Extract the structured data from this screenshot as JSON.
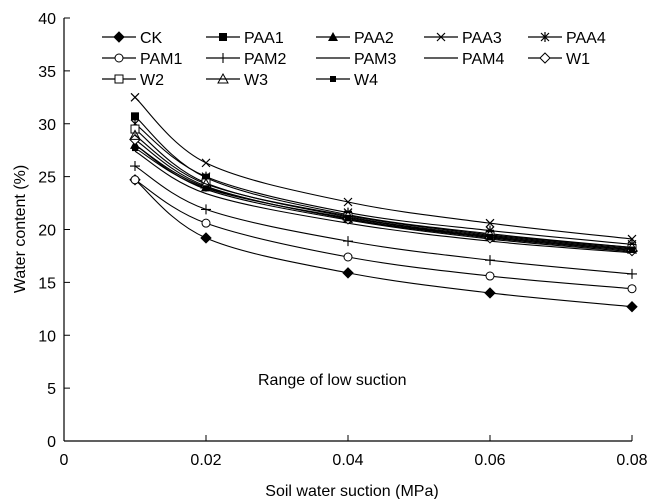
{
  "chart_data": {
    "type": "line",
    "xlabel": "Soil water suction (MPa)",
    "ylabel": "Water content (%)",
    "xlim": [
      0,
      0.08
    ],
    "ylim": [
      0,
      40
    ],
    "x_ticks": [
      "0",
      "0.02",
      "0.04",
      "0.06",
      "0.08"
    ],
    "y_ticks": [
      "0",
      "5",
      "10",
      "15",
      "20",
      "25",
      "30",
      "35",
      "40"
    ],
    "grid": false,
    "legend_position": "top",
    "annotation": "Range of low suction",
    "x": [
      0.01,
      0.02,
      0.04,
      0.06,
      0.08
    ],
    "series": [
      {
        "name": "CK",
        "marker": "diamond",
        "values": [
          24.7,
          19.2,
          15.9,
          14.0,
          12.7
        ]
      },
      {
        "name": "PAA1",
        "marker": "square-filled",
        "values": [
          30.7,
          24.9,
          21.4,
          19.6,
          18.3
        ]
      },
      {
        "name": "PAA2",
        "marker": "triangle-filled",
        "values": [
          28.0,
          24.0,
          21.0,
          19.3,
          18.1
        ]
      },
      {
        "name": "PAA3",
        "marker": "x",
        "values": [
          32.5,
          26.3,
          22.6,
          20.6,
          19.1
        ]
      },
      {
        "name": "PAA4",
        "marker": "asterisk",
        "values": [
          30.0,
          25.0,
          21.6,
          19.9,
          18.6
        ]
      },
      {
        "name": "PAM1",
        "marker": "circle-open",
        "values": [
          24.7,
          20.6,
          17.4,
          15.6,
          14.4
        ]
      },
      {
        "name": "PAM2",
        "marker": "plus",
        "values": [
          26.0,
          21.9,
          18.9,
          17.1,
          15.8
        ]
      },
      {
        "name": "PAM3",
        "marker": "none",
        "values": [
          27.4,
          23.4,
          20.6,
          18.9,
          17.8
        ]
      },
      {
        "name": "PAM4",
        "marker": "none",
        "values": [
          28.0,
          23.8,
          20.9,
          19.1,
          17.9
        ]
      },
      {
        "name": "W1",
        "marker": "diamond-open",
        "values": [
          28.5,
          24.1,
          21.0,
          19.2,
          18.0
        ]
      },
      {
        "name": "W2",
        "marker": "square-open",
        "values": [
          29.5,
          24.4,
          21.2,
          19.4,
          18.2
        ]
      },
      {
        "name": "W3",
        "marker": "triangle-open",
        "values": [
          28.9,
          24.3,
          21.3,
          19.5,
          18.3
        ]
      },
      {
        "name": "W4",
        "marker": "square-small",
        "values": [
          27.7,
          23.9,
          21.1,
          19.3,
          18.1
        ]
      }
    ]
  }
}
